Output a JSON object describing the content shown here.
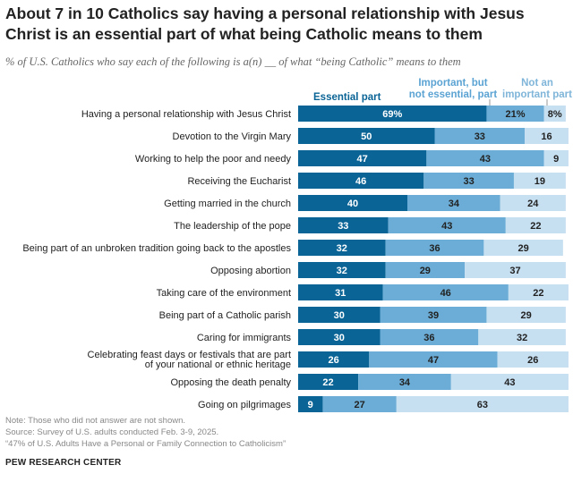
{
  "header": {
    "title": "About 7 in 10 Catholics say having a personal relationship with Jesus Christ is an essential part of what being Catholic means to them",
    "subtitle": "% of U.S. Catholics who say each of the following is a(n) __ of what “being Catholic” means to them"
  },
  "legend": {
    "essential": "Essential part",
    "important_line1": "Important, but",
    "important_line2": "not essential, part",
    "not_line1": "Not an",
    "not_line2": "important part"
  },
  "colors": {
    "essential": "#0a6496",
    "important": "#6badd6",
    "not_important": "#c6dff1",
    "legend_not_text": "#7fb5d9"
  },
  "chart_data": {
    "type": "bar",
    "orientation": "horizontal",
    "stacked": true,
    "categories": [
      [
        "Having a personal relationship with Jesus Christ"
      ],
      [
        "Devotion to the Virgin Mary"
      ],
      [
        "Working to help the poor and needy"
      ],
      [
        "Receiving the Eucharist"
      ],
      [
        "Getting married in the church"
      ],
      [
        "The leadership of the pope"
      ],
      [
        "Being part of an unbroken tradition going back to the apostles"
      ],
      [
        "Opposing abortion"
      ],
      [
        "Taking care of the environment"
      ],
      [
        "Being part of a Catholic parish"
      ],
      [
        "Caring for immigrants"
      ],
      [
        "Celebrating feast days or festivals that are part",
        "of your national or ethnic heritage"
      ],
      [
        "Opposing the death penalty"
      ],
      [
        "Going on pilgrimages"
      ]
    ],
    "series": [
      {
        "name": "Essential part",
        "values": [
          69,
          50,
          47,
          46,
          40,
          33,
          32,
          32,
          31,
          30,
          30,
          26,
          22,
          9
        ]
      },
      {
        "name": "Important, but not essential, part",
        "values": [
          21,
          33,
          43,
          33,
          34,
          43,
          36,
          29,
          46,
          39,
          36,
          47,
          34,
          27
        ]
      },
      {
        "name": "Not an important part",
        "values": [
          8,
          16,
          9,
          19,
          24,
          22,
          29,
          37,
          22,
          29,
          32,
          26,
          43,
          63
        ]
      }
    ],
    "first_row_suffix": "%"
  },
  "footer": {
    "note": "Note: Those who did not answer are not shown.",
    "source": "Source: Survey of U.S. adults conducted Feb. 3-9, 2025.",
    "report": "“47% of U.S. Adults Have a Personal or Family Connection to Catholicism”",
    "brand": "PEW RESEARCH CENTER"
  }
}
